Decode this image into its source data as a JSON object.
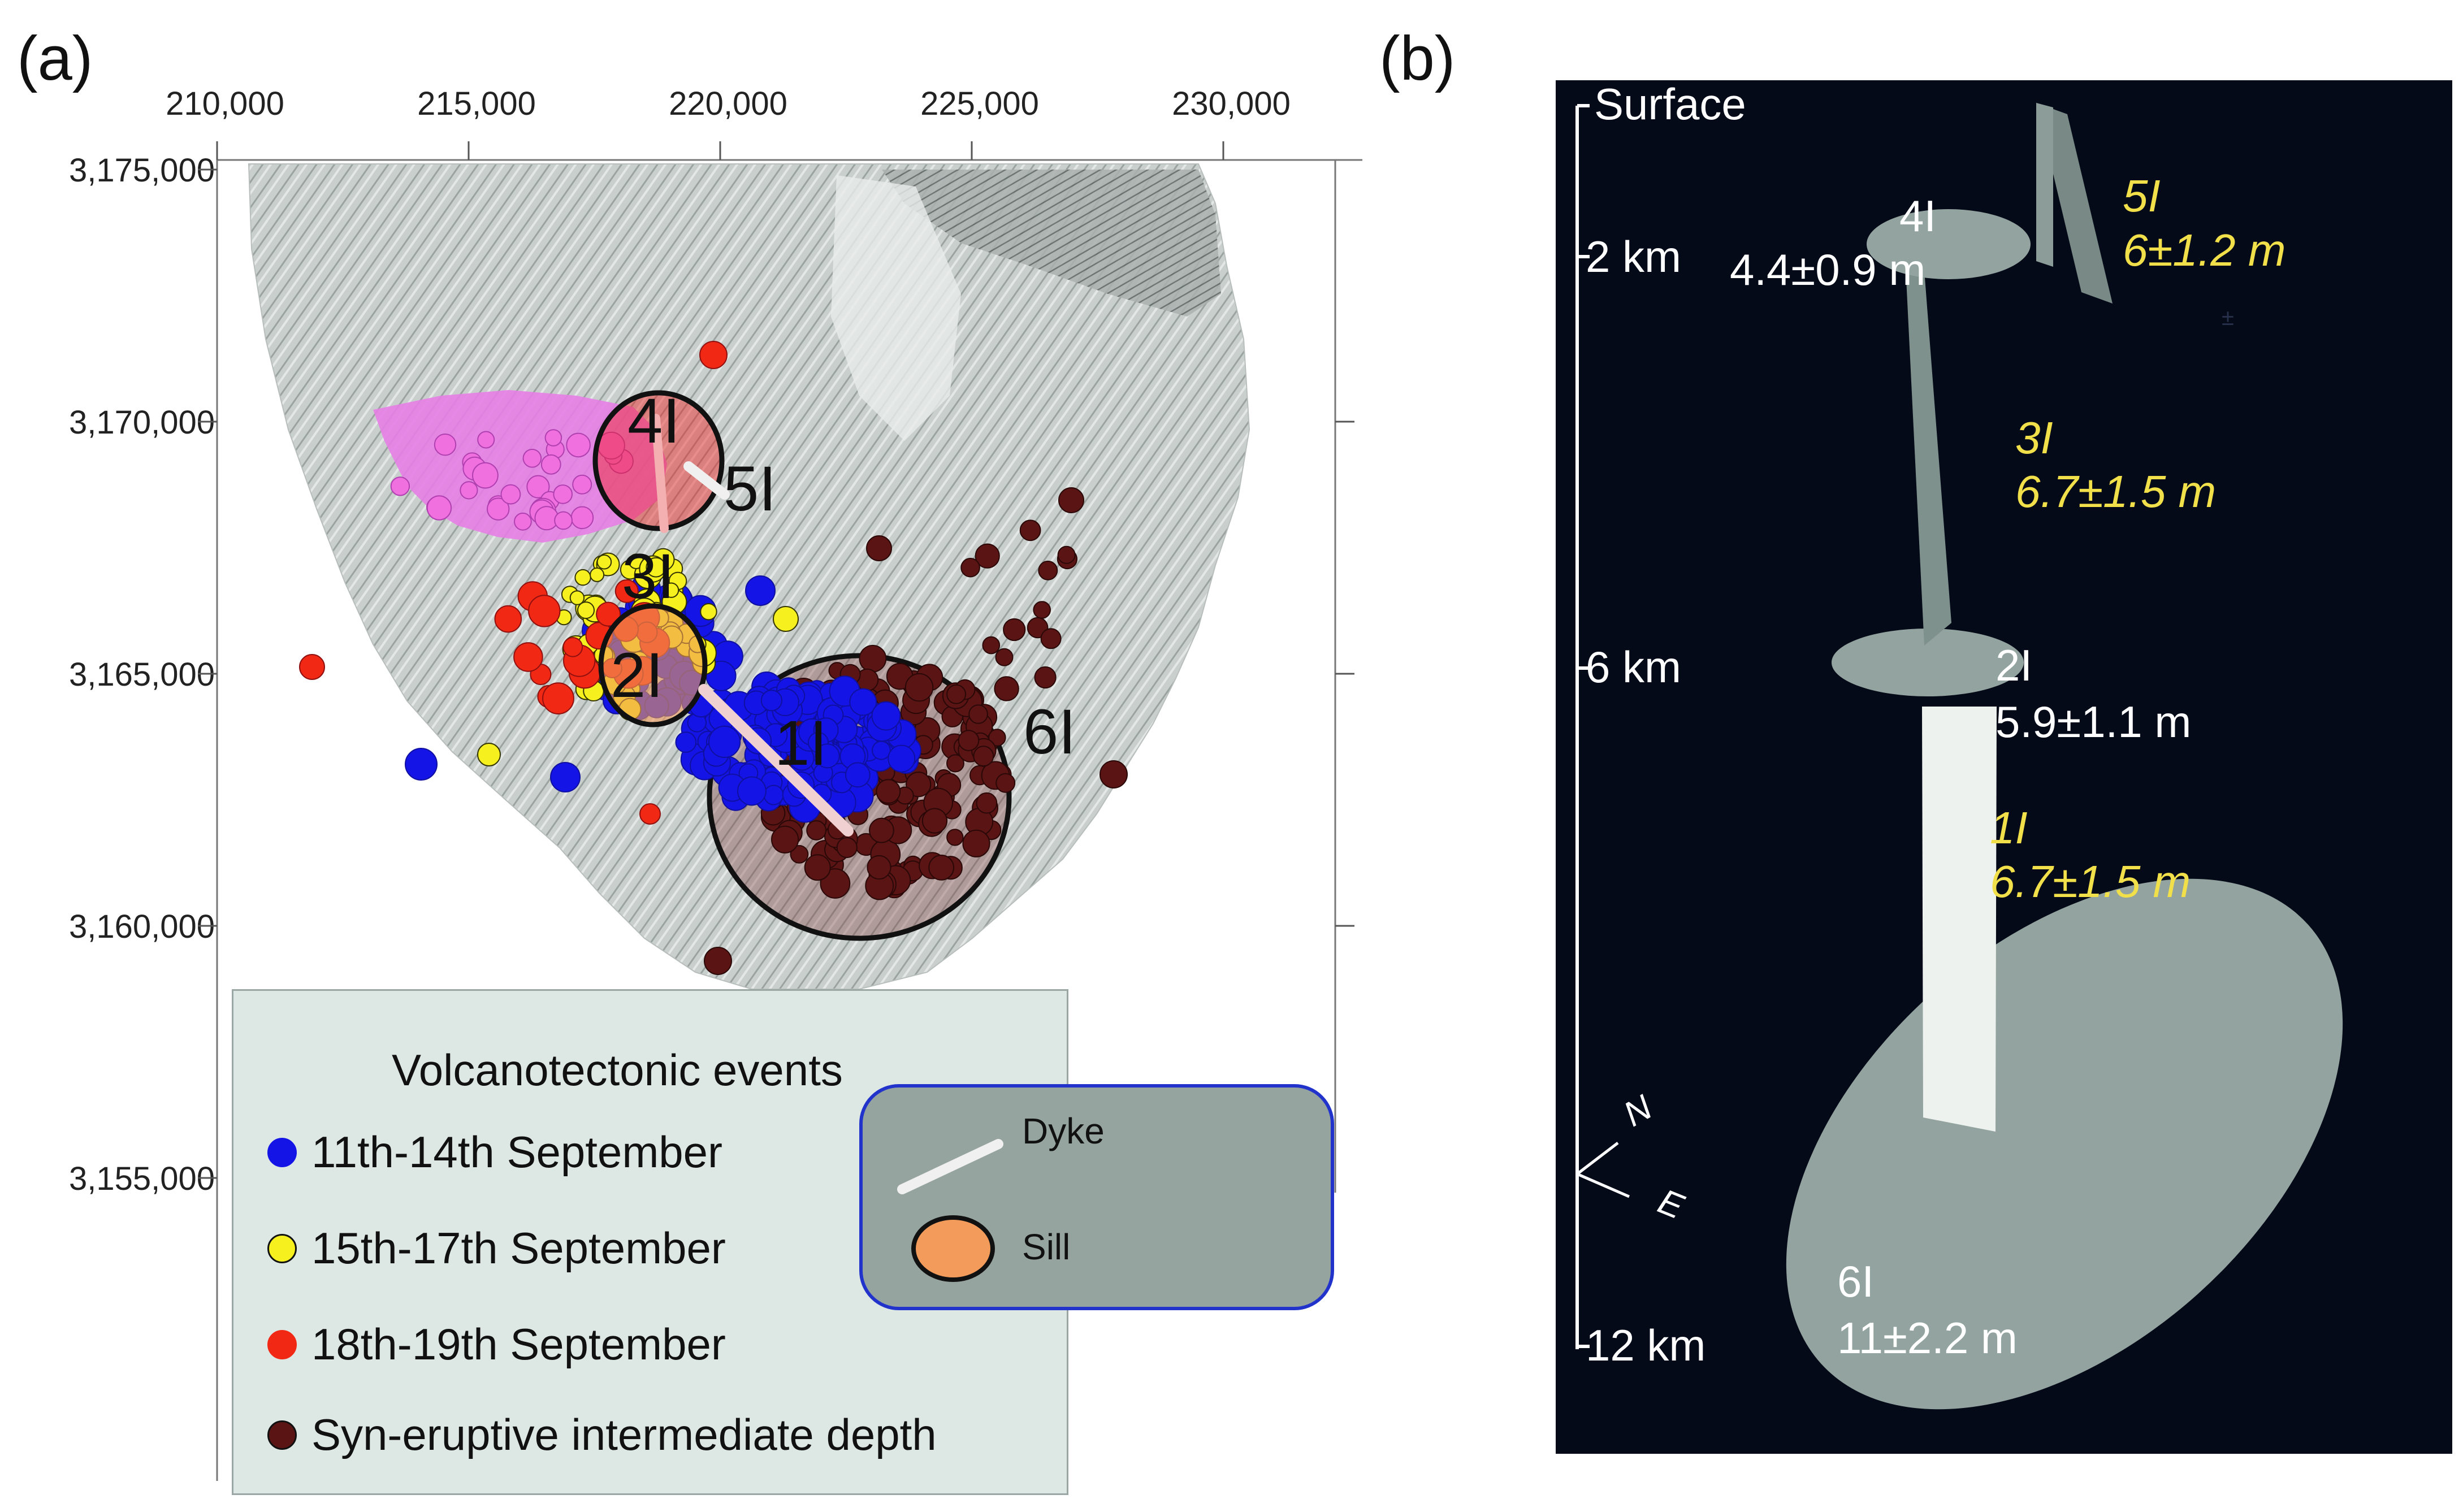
{
  "panel_a": {
    "label": "(a)",
    "x_ticks": [
      "210,000",
      "215,000",
      "220,000",
      "225,000",
      "230,000"
    ],
    "y_ticks": [
      "3,175,000",
      "3,170,000",
      "3,165,000",
      "3,160,000",
      "3,155,000"
    ],
    "source_labels": [
      "4I",
      "5I",
      "3I",
      "2I",
      "1I",
      "6I"
    ],
    "legend": {
      "title": "Volcanotectonic events",
      "items": [
        {
          "label": "11th-14th September",
          "color": "#1414e6"
        },
        {
          "label": "15th-17th September",
          "color": "#f5f01e"
        },
        {
          "label": "18th-19th September",
          "color": "#f02814"
        },
        {
          "label": "Syn-eruptive intermediate depth",
          "color": "#5a1414"
        }
      ]
    },
    "structure_legend": {
      "dyke_label": "Dyke",
      "sill_label": "Sill",
      "dyke_color": "#f0f0f0",
      "sill_color": "#f29b5a"
    },
    "lava_color": "#e67ee6"
  },
  "panel_b": {
    "label": "(b)",
    "depth_labels": [
      "Surface",
      "2 km",
      "6 km",
      "12 km"
    ],
    "axes": {
      "north": "N",
      "east": "E"
    },
    "sources": {
      "s4": {
        "name": "4I",
        "value": "4.4±0.9 m"
      },
      "s5": {
        "name": "5I",
        "value": "6±1.2 m"
      },
      "s3": {
        "name": "3I",
        "value": "6.7±1.5 m"
      },
      "s2": {
        "name": "2I",
        "value": "5.9±1.1 m"
      },
      "s1": {
        "name": "1I",
        "value": "6.7±1.5 m"
      },
      "s6": {
        "name": "6I",
        "value": "11±2.2 m"
      }
    },
    "stray_mark": "±"
  }
}
